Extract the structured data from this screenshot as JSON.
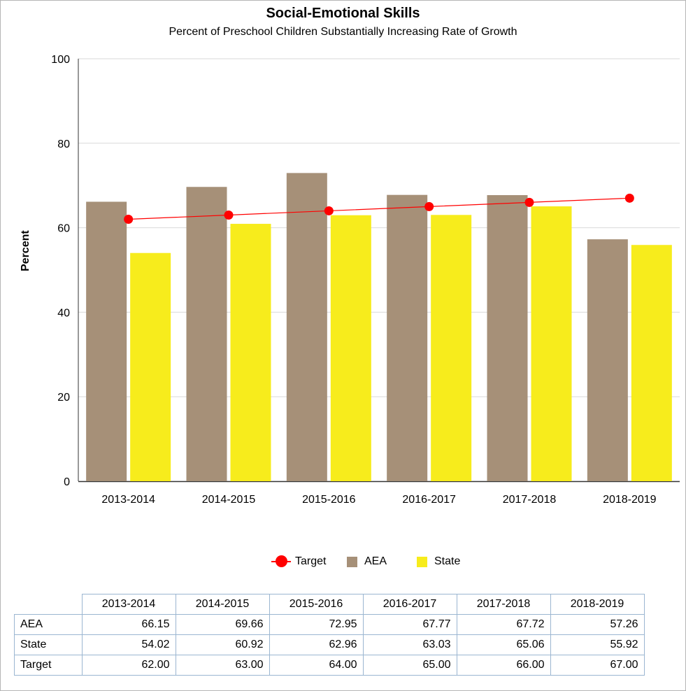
{
  "chart_data": {
    "type": "bar",
    "title": "Social-Emotional Skills",
    "subtitle": "Percent of Preschool Children Substantially Increasing Rate of Growth",
    "ylabel": "Percent",
    "xlabel": "",
    "ylim": [
      0,
      100
    ],
    "yticks": [
      0,
      20,
      40,
      60,
      80,
      100
    ],
    "grid": true,
    "legend_position": "bottom",
    "categories": [
      "2013-2014",
      "2014-2015",
      "2015-2016",
      "2016-2017",
      "2017-2018",
      "2018-2019"
    ],
    "series": [
      {
        "name": "AEA",
        "type": "bar",
        "color": "#a69078",
        "values": [
          66.15,
          69.66,
          72.95,
          67.77,
          67.72,
          57.26
        ]
      },
      {
        "name": "State",
        "type": "bar",
        "color": "#f7ec1c",
        "values": [
          54.02,
          60.92,
          62.96,
          63.03,
          65.06,
          55.92
        ]
      },
      {
        "name": "Target",
        "type": "line",
        "color": "#ff0000",
        "values": [
          62.0,
          63.0,
          64.0,
          65.0,
          66.0,
          67.0
        ]
      }
    ]
  },
  "table": {
    "columns": [
      "2013-2014",
      "2014-2015",
      "2015-2016",
      "2016-2017",
      "2017-2018",
      "2018-2019"
    ],
    "rows": [
      {
        "label": "AEA",
        "values": [
          "66.15",
          "69.66",
          "72.95",
          "67.77",
          "67.72",
          "57.26"
        ]
      },
      {
        "label": "State",
        "values": [
          "54.02",
          "60.92",
          "62.96",
          "63.03",
          "65.06",
          "55.92"
        ]
      },
      {
        "label": "Target",
        "values": [
          "62.00",
          "63.00",
          "64.00",
          "65.00",
          "66.00",
          "67.00"
        ]
      }
    ]
  }
}
